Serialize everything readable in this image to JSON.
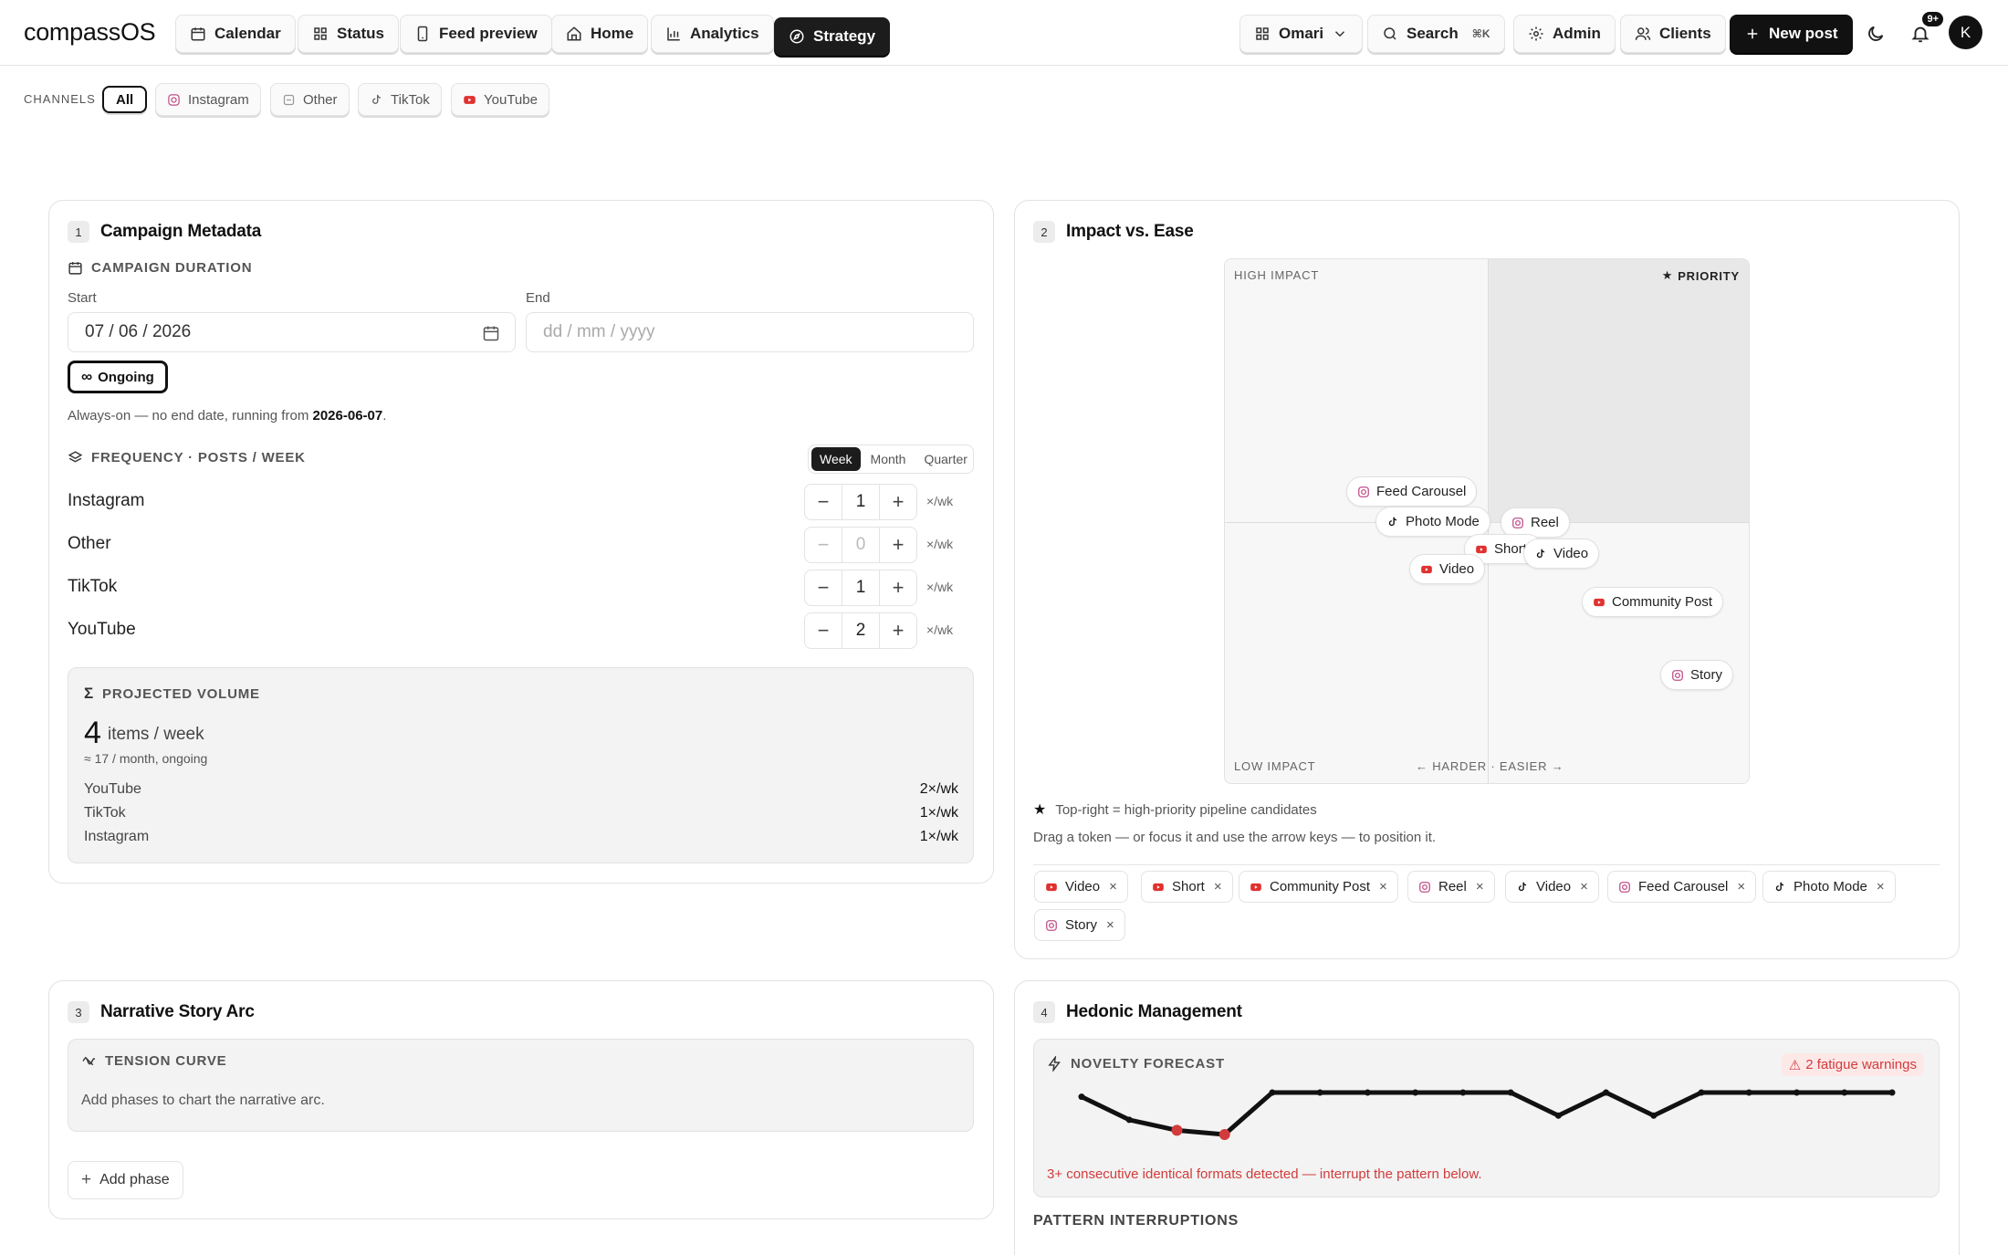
{
  "app": {
    "logo": "compassOS"
  },
  "nav": {
    "calendar": "Calendar",
    "status": "Status",
    "feed_preview": "Feed preview",
    "home": "Home",
    "analytics": "Analytics",
    "strategy": "Strategy",
    "workspace": "Omari",
    "search": "Search",
    "search_kbd": "⌘K",
    "admin": "Admin",
    "clients": "Clients",
    "new_post": "New post",
    "notifications_badge": "9+",
    "avatar_initial": "K"
  },
  "channels": {
    "label": "CHANNELS",
    "items": [
      "All",
      "Instagram",
      "Other",
      "TikTok",
      "YouTube"
    ],
    "selected": "All"
  },
  "card1": {
    "num": "1",
    "title": "Campaign Metadata",
    "duration_label": "CAMPAIGN DURATION",
    "start_label": "Start",
    "start_value": "07 / 06 / 2026",
    "end_label": "End",
    "end_placeholder": "dd / mm / yyyy",
    "ongoing": "Ongoing",
    "always_prefix": "Always-on — no end date, running from ",
    "always_date": "2026-06-07",
    "always_suffix": ".",
    "frequency_label": "FREQUENCY · POSTS / WEEK",
    "periods": [
      "Week",
      "Month",
      "Quarter"
    ],
    "period_selected": "Week",
    "per_unit": "×/wk",
    "rows": [
      {
        "name": "Instagram",
        "value": "1"
      },
      {
        "name": "Other",
        "value": "0"
      },
      {
        "name": "TikTok",
        "value": "1"
      },
      {
        "name": "YouTube",
        "value": "2"
      }
    ],
    "projected": {
      "label": "PROJECTED VOLUME",
      "total": "4",
      "unit": "items / week",
      "approx": "≈ 17 / month, ongoing",
      "breakdown": [
        {
          "name": "YouTube",
          "value": "2×/wk"
        },
        {
          "name": "TikTok",
          "value": "1×/wk"
        },
        {
          "name": "Instagram",
          "value": "1×/wk"
        }
      ]
    }
  },
  "card2": {
    "num": "2",
    "title": "Impact vs. Ease",
    "high_impact": "HIGH IMPACT",
    "low_impact": "LOW IMPACT",
    "priority": "PRIORITY",
    "axis": "← HARDER · EASIER →",
    "tokens": [
      {
        "label": "Feed Carousel",
        "channel": "instagram"
      },
      {
        "label": "Photo Mode",
        "channel": "tiktok"
      },
      {
        "label": "Reel",
        "channel": "instagram"
      },
      {
        "label": "Short",
        "channel": "youtube"
      },
      {
        "label": "Video",
        "channel": "tiktok"
      },
      {
        "label": "Video",
        "channel": "youtube"
      },
      {
        "label": "Community Post",
        "channel": "youtube"
      },
      {
        "label": "Story",
        "channel": "instagram"
      }
    ],
    "note1": "Top-right = high-priority pipeline candidates",
    "note2": "Drag a token — or focus it and use the arrow keys — to position it.",
    "tags": [
      {
        "label": "Video",
        "channel": "youtube"
      },
      {
        "label": "Short",
        "channel": "youtube"
      },
      {
        "label": "Community Post",
        "channel": "youtube"
      },
      {
        "label": "Reel",
        "channel": "instagram"
      },
      {
        "label": "Video",
        "channel": "tiktok"
      },
      {
        "label": "Feed Carousel",
        "channel": "instagram"
      },
      {
        "label": "Photo Mode",
        "channel": "tiktok"
      },
      {
        "label": "Story",
        "channel": "instagram"
      }
    ],
    "remove_glyph": "×"
  },
  "card3": {
    "num": "3",
    "title": "Narrative Story Arc",
    "tension_label": "TENSION CURVE",
    "hint": "Add phases to chart the narrative arc.",
    "add_phase": "Add phase"
  },
  "card4": {
    "num": "4",
    "title": "Hedonic Management",
    "novelty_label": "NOVELTY FORECAST",
    "warnings": "2 fatigue warnings",
    "warn_text": "3+ consecutive identical formats detected — interrupt the pattern below.",
    "pattern_label": "PATTERN INTERRUPTIONS",
    "forecast": [
      0.9,
      0.35,
      0.1,
      0.0,
      1.0,
      1.0,
      1.0,
      1.0,
      1.0,
      1.0,
      0.45,
      1.0,
      0.45,
      1.0,
      1.0,
      1.0,
      1.0,
      1.0
    ],
    "fatigue_points": [
      2,
      3
    ]
  },
  "colors": {
    "youtube": "#e0312f",
    "instagram": "#c0508a",
    "tiktok": "#111111",
    "other": "#999999",
    "warning": "#d23b3b"
  }
}
